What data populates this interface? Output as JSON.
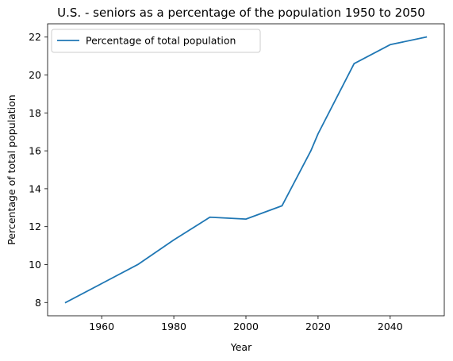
{
  "chart_data": {
    "type": "line",
    "title": "U.S. - seniors as a percentage of the population 1950 to 2050",
    "xlabel": "Year",
    "ylabel": "Percentage of total population",
    "xlim": [
      1945,
      2055
    ],
    "ylim": [
      7.3,
      22.7
    ],
    "x_ticks": [
      1960,
      1980,
      2000,
      2020,
      2040
    ],
    "y_ticks": [
      8,
      10,
      12,
      14,
      16,
      18,
      20,
      22
    ],
    "grid": false,
    "legend_position": "top-left",
    "series": [
      {
        "name": "Percentage of total population",
        "color": "#1f77b4",
        "x": [
          1950,
          1960,
          1970,
          1980,
          1990,
          2000,
          2010,
          2018,
          2020,
          2030,
          2040,
          2050
        ],
        "y": [
          8.0,
          9.0,
          10.0,
          11.3,
          12.5,
          12.4,
          13.1,
          16.0,
          16.9,
          20.6,
          21.6,
          22.0
        ]
      }
    ]
  }
}
